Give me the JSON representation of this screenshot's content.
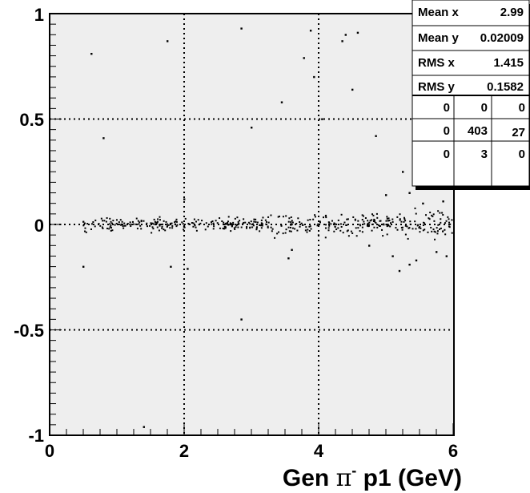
{
  "chart_data": {
    "type": "scatter",
    "title": "",
    "xlabel": {
      "prefix": "Gen ",
      "symbol": "π",
      "sup": "-",
      "suffix": " p1 (GeV)"
    },
    "ylabel": "",
    "xlim": [
      0,
      6
    ],
    "ylim": [
      -1,
      1
    ],
    "x_ticks": [
      "0",
      "2",
      "4",
      "6"
    ],
    "y_ticks": [
      "-1",
      "-0.5",
      "0",
      "0.5",
      "1"
    ],
    "grid": true,
    "stats": {
      "rows": [
        {
          "label": "Mean x",
          "value": "2.99"
        },
        {
          "label": "Mean y",
          "value": "0.02009"
        },
        {
          "label": "RMS x",
          "value": "1.415"
        },
        {
          "label": "RMS y",
          "value": "0.1582"
        }
      ],
      "overflow": [
        [
          "0",
          "0",
          "0"
        ],
        [
          "0",
          "403",
          "27"
        ],
        [
          "0",
          "3",
          "0"
        ]
      ]
    },
    "outliers": [
      {
        "x": 0.62,
        "y": 0.81
      },
      {
        "x": 0.8,
        "y": 0.41
      },
      {
        "x": 1.75,
        "y": 0.87
      },
      {
        "x": 2.85,
        "y": 0.93
      },
      {
        "x": 3.78,
        "y": 0.79
      },
      {
        "x": 3.88,
        "y": 0.92
      },
      {
        "x": 3.93,
        "y": 0.7
      },
      {
        "x": 4.35,
        "y": 0.87
      },
      {
        "x": 4.4,
        "y": 0.9
      },
      {
        "x": 4.58,
        "y": 0.91
      },
      {
        "x": 4.5,
        "y": 0.64
      },
      {
        "x": 3.45,
        "y": 0.58
      },
      {
        "x": 3.0,
        "y": 0.46
      },
      {
        "x": 4.05,
        "y": 0.5
      },
      {
        "x": 4.85,
        "y": 0.42
      },
      {
        "x": 5.25,
        "y": 0.25
      },
      {
        "x": 5.0,
        "y": 0.14
      },
      {
        "x": 5.98,
        "y": 0.19
      },
      {
        "x": 0.5,
        "y": -0.2
      },
      {
        "x": 1.8,
        "y": -0.2
      },
      {
        "x": 2.05,
        "y": -0.21
      },
      {
        "x": 2.85,
        "y": -0.45
      },
      {
        "x": 1.4,
        "y": -0.96
      },
      {
        "x": 3.55,
        "y": -0.16
      },
      {
        "x": 3.6,
        "y": -0.12
      },
      {
        "x": 5.2,
        "y": -0.22
      },
      {
        "x": 5.35,
        "y": -0.19
      },
      {
        "x": 5.45,
        "y": -0.17
      },
      {
        "x": 5.1,
        "y": -0.15
      },
      {
        "x": 5.9,
        "y": -0.15
      },
      {
        "x": 5.75,
        "y": -0.13
      },
      {
        "x": 5.55,
        "y": 0.1
      },
      {
        "x": 5.85,
        "y": 0.11
      },
      {
        "x": 5.35,
        "y": 0.15
      },
      {
        "x": 4.75,
        "y": -0.1
      },
      {
        "x": 2.0,
        "y": 0.12
      }
    ],
    "band": {
      "n": 460,
      "x_range": [
        0.5,
        6.0
      ],
      "y_mean": 0.0,
      "y_spread": 0.02
    }
  }
}
